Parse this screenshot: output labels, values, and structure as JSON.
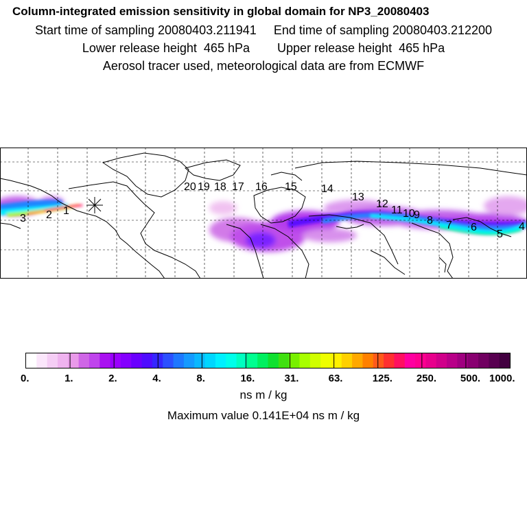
{
  "header": {
    "title": "Column-integrated emission sensitivity in global domain for NP3_20080403",
    "sampling_line": "Start time of sampling 20080403.211941     End time of sampling 20080403.212200",
    "release_line": "Lower release height  465 hPa        Upper release height  465 hPa",
    "tracer_line": "Aerosol tracer used, meteorological data are from ECMWF"
  },
  "map": {
    "trajectory_labels": [
      "1",
      "2",
      "3",
      "4",
      "5",
      "6",
      "7",
      "8",
      "9",
      "10",
      "11",
      "12",
      "13",
      "14",
      "15",
      "16",
      "17",
      "18",
      "19",
      "20"
    ]
  },
  "colorbar": {
    "tick_labels": [
      "0.",
      "1.",
      "2.",
      "4.",
      "8.",
      "16.",
      "31.",
      "63.",
      "125.",
      "250.",
      "500.",
      "1000."
    ],
    "colors": [
      "#ffffff",
      "#fbe6fb",
      "#f5cdf5",
      "#efb3ef",
      "#e99ae9",
      "#cf66e6",
      "#bf44ec",
      "#a911f0",
      "#9a00ff",
      "#8400ff",
      "#6a00ff",
      "#4f0cff",
      "#3526ff",
      "#2c50ff",
      "#1e78ff",
      "#159aff",
      "#0ab8ff",
      "#00d6ff",
      "#00f0ff",
      "#00ffea",
      "#00ffc0",
      "#00ff90",
      "#00f060",
      "#10e030",
      "#40e010",
      "#78f000",
      "#a8ff00",
      "#d0ff00",
      "#eeff00",
      "#fff000",
      "#ffd000",
      "#ffa800",
      "#ff8000",
      "#ff5a1a",
      "#ff3030",
      "#ff1060",
      "#ff00a0",
      "#ff0090",
      "#e8008c",
      "#d0008a",
      "#b80088",
      "#a00080",
      "#880070",
      "#700060",
      "#580050",
      "#420040"
    ],
    "units": "ns m / kg"
  },
  "maximum": "Maximum value  0.141E+04 ns m / kg"
}
